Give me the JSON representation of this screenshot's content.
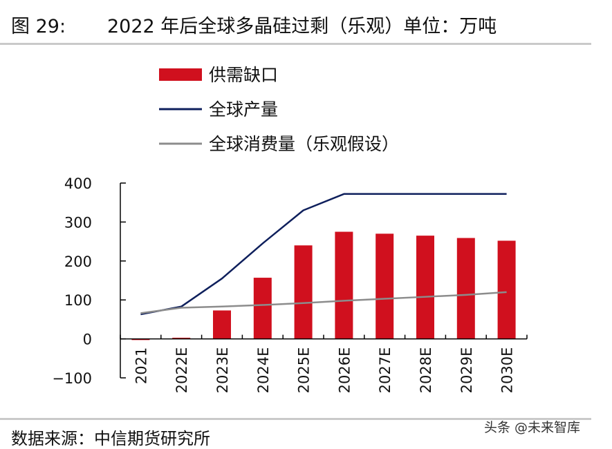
{
  "header": {
    "figure_label": "图 29:",
    "title": "2022 年后全球多晶硅过剩（乐观）单位：万吨"
  },
  "footer": {
    "source": "数据来源：中信期货研究所",
    "watermark": "头条 @未来智库"
  },
  "colors": {
    "bar": "#d0101e",
    "production_line": "#0e1f5c",
    "consumption_line": "#8c8c8c",
    "axis": "#000000"
  },
  "chart_data": {
    "type": "bar",
    "categories": [
      "2021",
      "2022E",
      "2023E",
      "2024E",
      "2025E",
      "2026E",
      "2027E",
      "2028E",
      "2029E",
      "2030E"
    ],
    "ylim": [
      -100,
      400
    ],
    "yticks": [
      "400",
      "300",
      "200",
      "100",
      "0",
      "−100"
    ],
    "ytick_values": [
      400,
      300,
      200,
      100,
      0,
      -100
    ],
    "legend_position": "top-left",
    "series": [
      {
        "name": "供需缺口",
        "type": "bar",
        "values": [
          -3,
          3,
          73,
          157,
          240,
          275,
          270,
          265,
          259,
          252
        ]
      },
      {
        "name": "全球产量",
        "type": "line",
        "values": [
          63,
          83,
          155,
          245,
          330,
          372,
          372,
          372,
          372,
          372
        ]
      },
      {
        "name": "全球消费量（乐观假设）",
        "type": "line",
        "values": [
          66,
          80,
          83,
          87,
          92,
          98,
          103,
          108,
          113,
          120
        ]
      }
    ]
  }
}
